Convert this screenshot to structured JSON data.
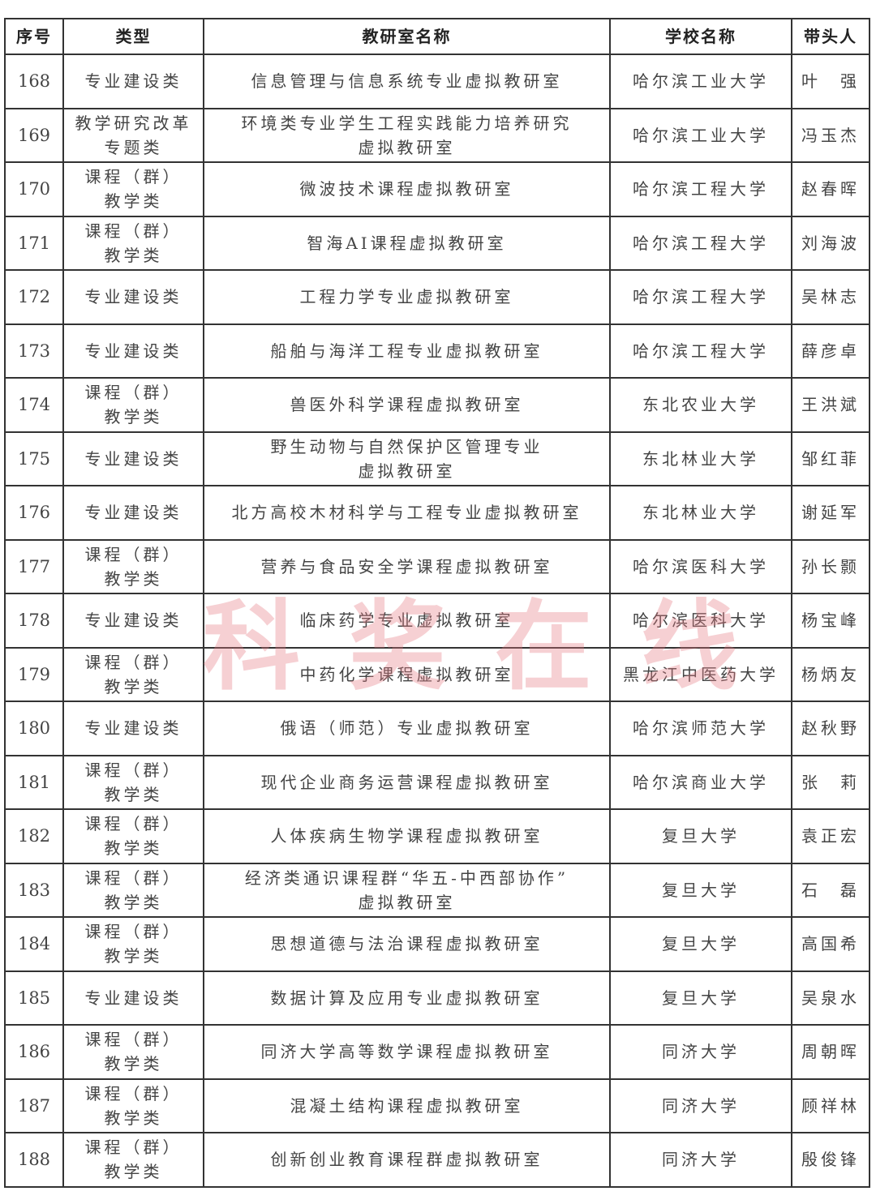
{
  "headers": [
    "序号",
    "类型",
    "教研室名称",
    "学校名称",
    "带头人"
  ],
  "rows": [
    [
      "168",
      "专业建设类",
      "信息管理与信息系统专业虚拟教研室",
      "哈尔滨工业大学",
      "叶　强"
    ],
    [
      "169",
      "教学研究改革\n专题类",
      "环境类专业学生工程实践能力培养研究\n虚拟教研室",
      "哈尔滨工业大学",
      "冯玉杰"
    ],
    [
      "170",
      "课程（群）\n教学类",
      "微波技术课程虚拟教研室",
      "哈尔滨工程大学",
      "赵春晖"
    ],
    [
      "171",
      "课程（群）\n教学类",
      "智海AI课程虚拟教研室",
      "哈尔滨工程大学",
      "刘海波"
    ],
    [
      "172",
      "专业建设类",
      "工程力学专业虚拟教研室",
      "哈尔滨工程大学",
      "吴林志"
    ],
    [
      "173",
      "专业建设类",
      "船舶与海洋工程专业虚拟教研室",
      "哈尔滨工程大学",
      "薛彦卓"
    ],
    [
      "174",
      "课程（群）\n教学类",
      "兽医外科学课程虚拟教研室",
      "东北农业大学",
      "王洪斌"
    ],
    [
      "175",
      "专业建设类",
      "野生动物与自然保护区管理专业\n虚拟教研室",
      "东北林业大学",
      "邹红菲"
    ],
    [
      "176",
      "专业建设类",
      "北方高校木材科学与工程专业虚拟教研室",
      "东北林业大学",
      "谢延军"
    ],
    [
      "177",
      "课程（群）\n教学类",
      "营养与食品安全学课程虚拟教研室",
      "哈尔滨医科大学",
      "孙长颢"
    ],
    [
      "178",
      "专业建设类",
      "临床药学专业虚拟教研室",
      "哈尔滨医科大学",
      "杨宝峰"
    ],
    [
      "179",
      "课程（群）\n教学类",
      "中药化学课程虚拟教研室",
      "黑龙江中医药大学",
      "杨炳友"
    ],
    [
      "180",
      "专业建设类",
      "俄语（师范）专业虚拟教研室",
      "哈尔滨师范大学",
      "赵秋野"
    ],
    [
      "181",
      "课程（群）\n教学类",
      "现代企业商务运营课程虚拟教研室",
      "哈尔滨商业大学",
      "张　莉"
    ],
    [
      "182",
      "课程（群）\n教学类",
      "人体疾病生物学课程虚拟教研室",
      "复旦大学",
      "袁正宏"
    ],
    [
      "183",
      "课程（群）\n教学类",
      "经济类通识课程群“华五-中西部协作”\n虚拟教研室",
      "复旦大学",
      "石　磊"
    ],
    [
      "184",
      "课程（群）\n教学类",
      "思想道德与法治课程虚拟教研室",
      "复旦大学",
      "高国希"
    ],
    [
      "185",
      "专业建设类",
      "数据计算及应用专业虚拟教研室",
      "复旦大学",
      "吴泉水"
    ],
    [
      "186",
      "课程（群）\n教学类",
      "同济大学高等数学课程虚拟教研室",
      "同济大学",
      "周朝晖"
    ],
    [
      "187",
      "课程（群）\n教学类",
      "混凝土结构课程虚拟教研室",
      "同济大学",
      "顾祥林"
    ],
    [
      "188",
      "课程（群）\n教学类",
      "创新创业教育课程群虚拟教研室",
      "同济大学",
      "殷俊锋"
    ]
  ],
  "watermark": "科奖在线"
}
